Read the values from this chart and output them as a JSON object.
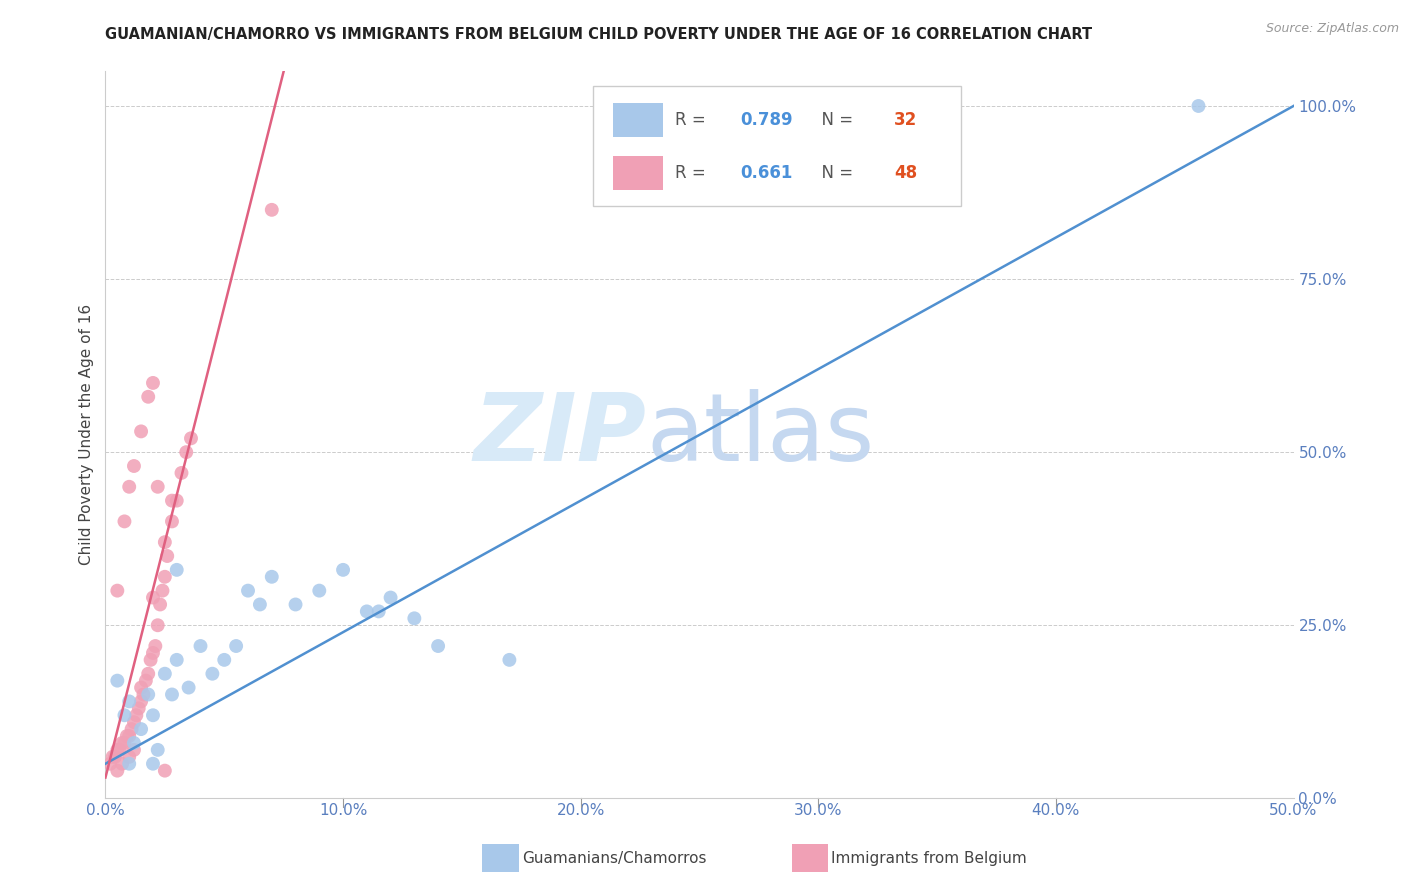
{
  "title": "GUAMANIAN/CHAMORRO VS IMMIGRANTS FROM BELGIUM CHILD POVERTY UNDER THE AGE OF 16 CORRELATION CHART",
  "source": "Source: ZipAtlas.com",
  "ylabel": "Child Poverty Under the Age of 16",
  "blue_label": "Guamanians/Chamorros",
  "pink_label": "Immigrants from Belgium",
  "blue_R": 0.789,
  "blue_N": 32,
  "pink_R": 0.661,
  "pink_N": 48,
  "blue_color": "#a8c8ea",
  "pink_color": "#f0a0b5",
  "blue_line_color": "#5090d0",
  "pink_line_color": "#e06080",
  "blue_text_color": "#4a90d9",
  "pink_text_color": "#e0506a",
  "n_blue_color": "#e05020",
  "n_pink_color": "#e05020",
  "watermark_zip_color": "#d8eaf8",
  "watermark_atlas_color": "#c5d8f0",
  "axis_tick_color": "#5a7fbf",
  "xmin": 0.0,
  "xmax": 0.5,
  "ymin": 0.0,
  "ymax": 1.05,
  "xtick_vals": [
    0.0,
    0.1,
    0.2,
    0.3,
    0.4,
    0.5
  ],
  "xtick_labels": [
    "0.0%",
    "10.0%",
    "20.0%",
    "30.0%",
    "40.0%",
    "50.0%"
  ],
  "ytick_vals": [
    0.0,
    0.25,
    0.5,
    0.75,
    1.0
  ],
  "ytick_labels": [
    "0.0%",
    "25.0%",
    "50.0%",
    "75.0%",
    "100.0%"
  ],
  "blue_trend_x0": 0.0,
  "blue_trend_y0": 0.05,
  "blue_trend_x1": 0.5,
  "blue_trend_y1": 1.0,
  "pink_trend_x0": 0.0,
  "pink_trend_y0": 0.03,
  "pink_trend_x1": 0.075,
  "pink_trend_y1": 1.05,
  "blue_x": [
    0.005,
    0.008,
    0.01,
    0.012,
    0.015,
    0.018,
    0.02,
    0.022,
    0.025,
    0.028,
    0.03,
    0.035,
    0.04,
    0.045,
    0.05,
    0.055,
    0.06,
    0.065,
    0.07,
    0.08,
    0.09,
    0.1,
    0.11,
    0.115,
    0.12,
    0.13,
    0.14,
    0.17,
    0.02,
    0.03,
    0.46,
    0.01
  ],
  "blue_y": [
    0.17,
    0.12,
    0.14,
    0.08,
    0.1,
    0.15,
    0.12,
    0.07,
    0.18,
    0.15,
    0.2,
    0.16,
    0.22,
    0.18,
    0.2,
    0.22,
    0.3,
    0.28,
    0.32,
    0.28,
    0.3,
    0.33,
    0.27,
    0.27,
    0.29,
    0.26,
    0.22,
    0.2,
    0.05,
    0.33,
    1.0,
    0.05
  ],
  "pink_x": [
    0.002,
    0.003,
    0.004,
    0.005,
    0.006,
    0.007,
    0.008,
    0.009,
    0.01,
    0.011,
    0.012,
    0.013,
    0.014,
    0.015,
    0.016,
    0.017,
    0.018,
    0.019,
    0.02,
    0.021,
    0.022,
    0.023,
    0.024,
    0.025,
    0.026,
    0.028,
    0.03,
    0.032,
    0.034,
    0.036,
    0.005,
    0.008,
    0.01,
    0.012,
    0.015,
    0.018,
    0.02,
    0.022,
    0.025,
    0.028,
    0.005,
    0.007,
    0.01,
    0.012,
    0.015,
    0.02,
    0.025,
    0.07
  ],
  "pink_y": [
    0.05,
    0.06,
    0.06,
    0.07,
    0.07,
    0.08,
    0.08,
    0.09,
    0.09,
    0.1,
    0.11,
    0.12,
    0.13,
    0.14,
    0.15,
    0.17,
    0.18,
    0.2,
    0.21,
    0.22,
    0.25,
    0.28,
    0.3,
    0.32,
    0.35,
    0.4,
    0.43,
    0.47,
    0.5,
    0.52,
    0.3,
    0.4,
    0.45,
    0.48,
    0.53,
    0.58,
    0.6,
    0.45,
    0.37,
    0.43,
    0.04,
    0.05,
    0.06,
    0.07,
    0.16,
    0.29,
    0.04,
    0.85
  ]
}
